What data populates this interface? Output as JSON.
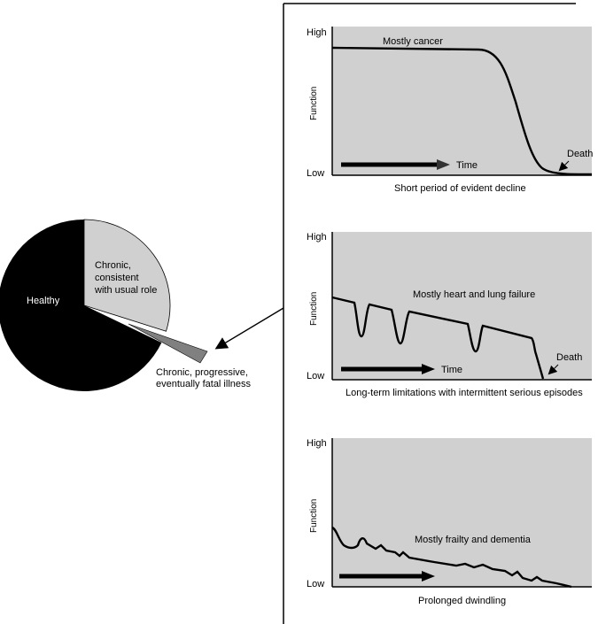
{
  "pie": {
    "slices": [
      {
        "label": "Healthy",
        "color": "#000000",
        "fraction": 0.66
      },
      {
        "label_lines": [
          "Chronic,",
          "consistent",
          "with usual role"
        ],
        "color": "#d0d0d0",
        "fraction": 0.305
      },
      {
        "label_lines": [
          "Chronic, progressive,",
          "eventually fatal illness"
        ],
        "color": "#808080",
        "fraction": 0.035
      }
    ],
    "healthy_label": "Healthy",
    "chronic_label_lines": [
      "Chronic,",
      "consistent",
      "with usual role"
    ],
    "fatal_label_lines": [
      "Chronic, progressive,",
      "eventually fatal illness"
    ]
  },
  "panels": [
    {
      "high_label": "High",
      "low_label": "Low",
      "ylabel": "Function",
      "title": "Mostly cancer",
      "time_label": "Time",
      "death_label": "Death",
      "caption": "Short period of evident decline",
      "background": "#d0d0d0",
      "trajectory": "cancer"
    },
    {
      "high_label": "High",
      "low_label": "Low",
      "ylabel": "Function",
      "title": "Mostly heart and lung failure",
      "time_label": "Time",
      "death_label": "Death",
      "caption": "Long-term limitations with intermittent serious episodes",
      "background": "#d0d0d0",
      "trajectory": "organ-failure"
    },
    {
      "high_label": "High",
      "low_label": "Low",
      "ylabel": "Function",
      "title": "Mostly frailty and dementia",
      "caption": "Prolonged dwindling",
      "background": "#d0d0d0",
      "trajectory": "frailty"
    }
  ]
}
